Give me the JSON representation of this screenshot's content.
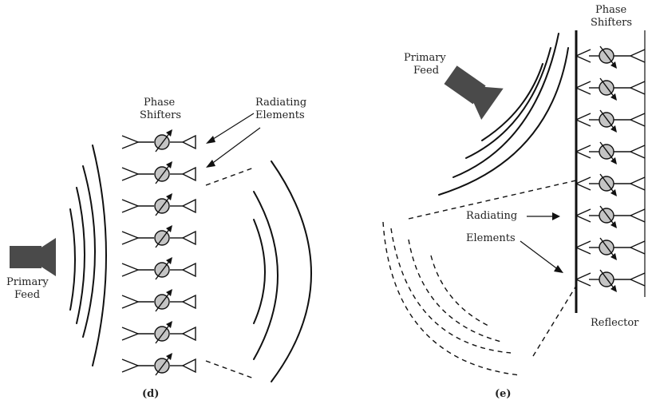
{
  "panel_d": {
    "label_phase_line1": "Phase",
    "label_phase_line2": "Shifters",
    "label_radiating_line1": "Radiating",
    "label_radiating_line2": "Elements",
    "label_feed_line1": "Primary",
    "label_feed_line2": "Feed",
    "caption": "(d)"
  },
  "panel_e": {
    "label_phase_line1": "Phase",
    "label_phase_line2": "Shifters",
    "label_feed_line1": "Primary",
    "label_feed_line2": "Feed",
    "label_radiating_line1": "Radiating",
    "label_radiating_line2": "Elements",
    "label_reflector": "Reflector",
    "caption": "(e)"
  },
  "element_count_d": 8,
  "element_count_e": 8,
  "colors": {
    "feed": "#4a4a4a",
    "phase_shifter": "#c4c4c4",
    "ink": "#111111"
  }
}
